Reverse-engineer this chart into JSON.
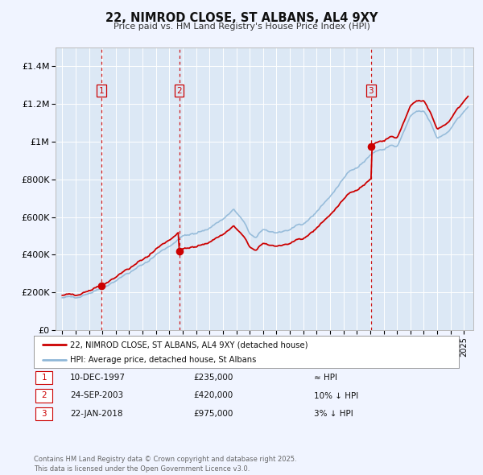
{
  "title": "22, NIMROD CLOSE, ST ALBANS, AL4 9XY",
  "subtitle": "Price paid vs. HM Land Registry's House Price Index (HPI)",
  "background_color": "#f0f4ff",
  "plot_bg_color": "#dce8f5",
  "grid_color": "#ffffff",
  "line_color_hpi": "#90b8d8",
  "line_color_price": "#cc0000",
  "sale_points": [
    {
      "year": 1997.95,
      "price": 235000,
      "label": "1"
    },
    {
      "year": 2003.73,
      "price": 420000,
      "label": "2"
    },
    {
      "year": 2018.06,
      "price": 975000,
      "label": "3"
    }
  ],
  "vline_years": [
    1997.95,
    2003.73,
    2018.06
  ],
  "ylim": [
    0,
    1500000
  ],
  "yticks": [
    0,
    200000,
    400000,
    600000,
    800000,
    1000000,
    1200000,
    1400000
  ],
  "ytick_labels": [
    "£0",
    "£200K",
    "£400K",
    "£600K",
    "£800K",
    "£1M",
    "£1.2M",
    "£1.4M"
  ],
  "xlim_start": 1994.5,
  "xlim_end": 2025.7,
  "legend_price_label": "22, NIMROD CLOSE, ST ALBANS, AL4 9XY (detached house)",
  "legend_hpi_label": "HPI: Average price, detached house, St Albans",
  "table_rows": [
    {
      "num": "1",
      "date": "10-DEC-1997",
      "price": "£235,000",
      "hpi": "≈ HPI"
    },
    {
      "num": "2",
      "date": "24-SEP-2003",
      "price": "£420,000",
      "hpi": "10% ↓ HPI"
    },
    {
      "num": "3",
      "date": "22-JAN-2018",
      "price": "£975,000",
      "hpi": "3% ↓ HPI"
    }
  ],
  "footnote": "Contains HM Land Registry data © Crown copyright and database right 2025.\nThis data is licensed under the Open Government Licence v3.0."
}
